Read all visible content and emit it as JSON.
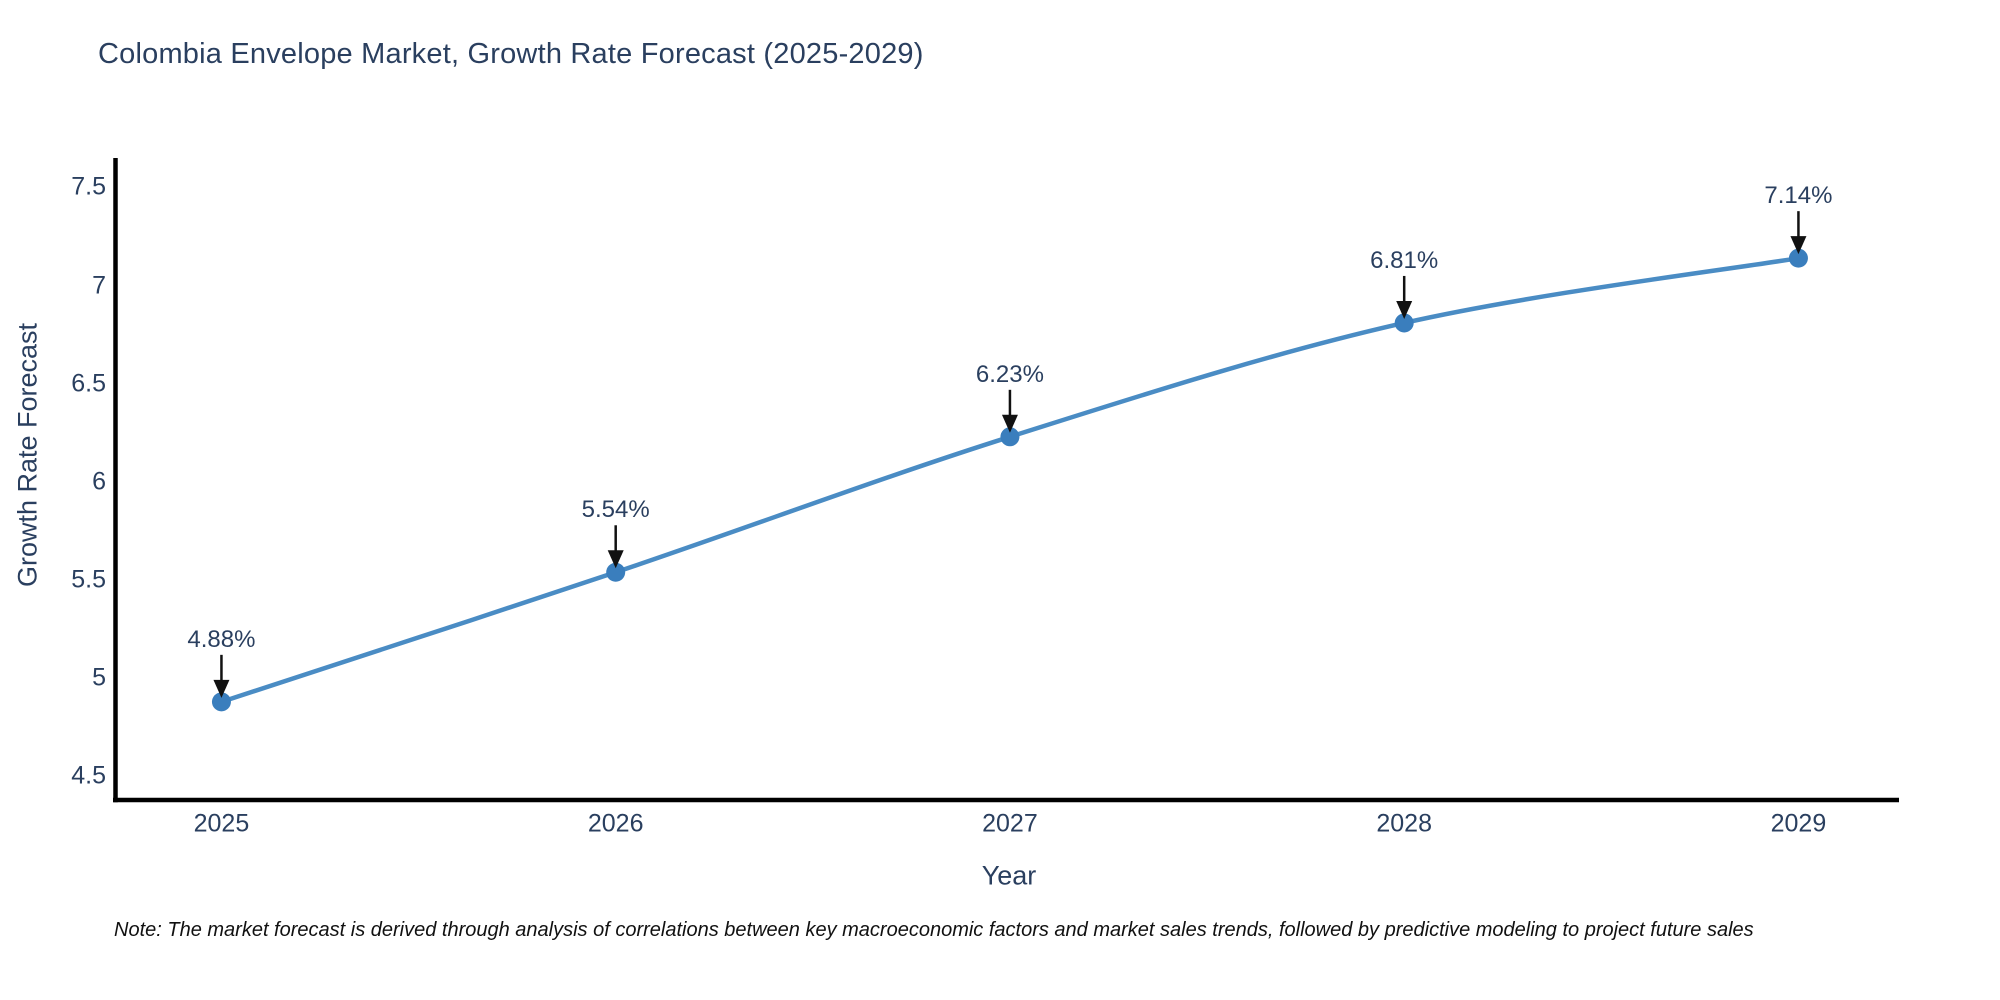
{
  "title": "Colombia Envelope Market, Growth Rate Forecast (2025-2029)",
  "note": "Note: The market forecast is derived through analysis of correlations between key macroeconomic factors and market sales trends, followed by predictive modeling to project future sales",
  "colors": {
    "font": "#2a3f5f",
    "line": "#4a8cc4",
    "marker": "#3a7ebd",
    "axis": "#000000",
    "arrow": "#111111",
    "note_text": "#111111",
    "background": "#ffffff"
  },
  "chart_data": {
    "type": "line",
    "title": "Colombia Envelope Market, Growth Rate Forecast (2025-2029)",
    "xlabel": "Year",
    "ylabel": "Growth Rate Forecast",
    "x": [
      2025,
      2026,
      2027,
      2028,
      2029
    ],
    "series": [
      {
        "name": "Growth Rate Forecast",
        "values": [
          4.88,
          5.54,
          6.23,
          6.81,
          7.14
        ]
      }
    ],
    "point_labels": [
      "4.88%",
      "5.54%",
      "6.23%",
      "6.81%",
      "7.14%"
    ],
    "yticks": [
      4.5,
      5,
      5.5,
      6,
      6.5,
      7,
      7.5
    ],
    "xlim": [
      2024.73,
      2029.25
    ],
    "ylim": [
      4.38,
      7.64
    ],
    "grid": false,
    "legend": "none",
    "line_shape": "spline",
    "marker": "circle",
    "annotations": "value labels with down arrows above each point"
  }
}
